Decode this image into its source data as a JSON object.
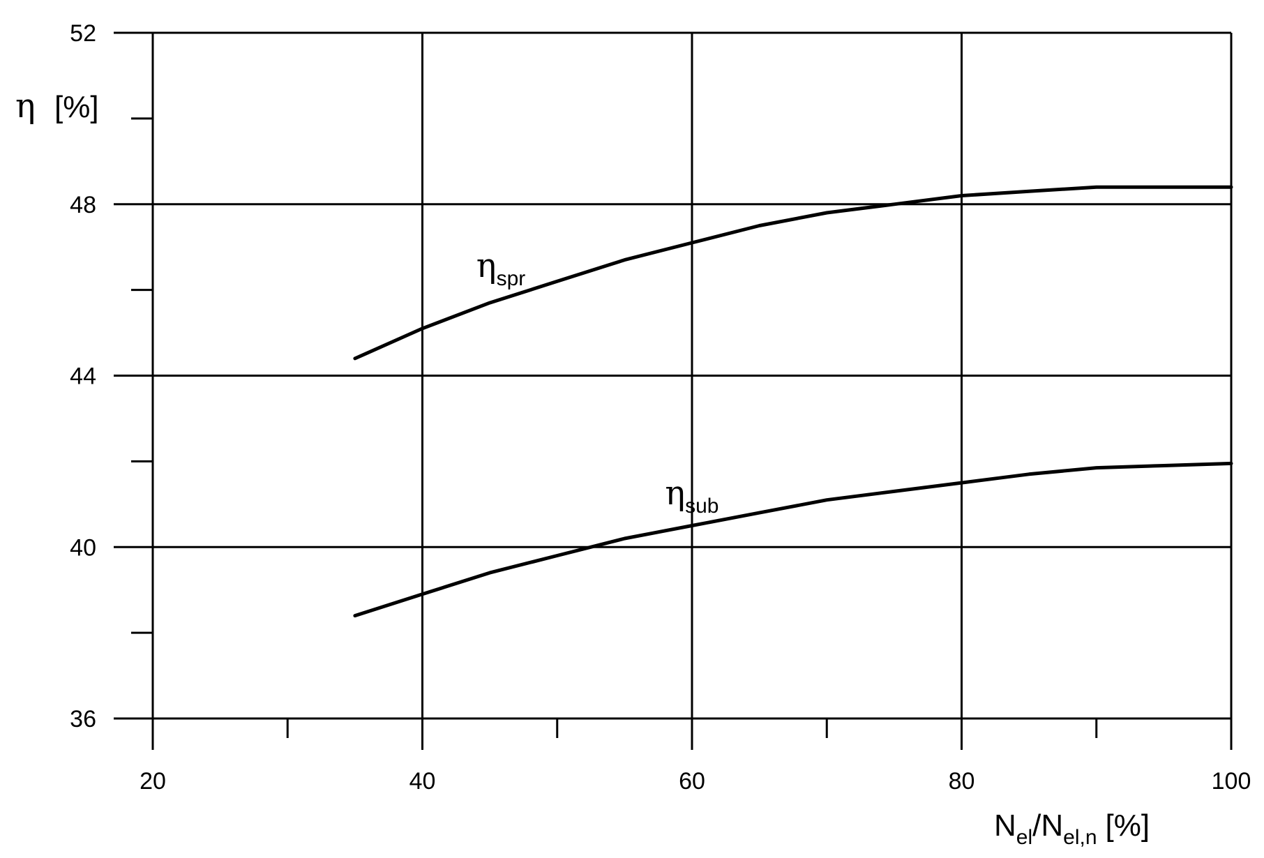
{
  "chart_data": {
    "type": "line",
    "title": "",
    "ylabel": {
      "symbol": "η",
      "unit": "[%]"
    },
    "xlabel": {
      "main": "N",
      "sub1": "el",
      "slash": "/N",
      "sub2": "el,n",
      "unit": "[%]"
    },
    "xlim": [
      20,
      100
    ],
    "ylim": [
      36,
      52
    ],
    "x_ticks_major": [
      20,
      40,
      60,
      80,
      100
    ],
    "x_ticks_major_labels": [
      "20",
      "40",
      "60",
      "80",
      "100"
    ],
    "x_ticks_minor": [
      30,
      50,
      70,
      90
    ],
    "y_ticks_major": [
      36,
      40,
      44,
      48,
      52
    ],
    "y_ticks_major_labels": [
      "36",
      "40",
      "44",
      "48",
      "52"
    ],
    "y_ticks_minor": [
      38,
      42,
      46,
      50
    ],
    "grid": true,
    "series": [
      {
        "name": "ηspr",
        "label_main": "η",
        "label_sub": "spr",
        "label_at": [
          44,
          46.3
        ],
        "x": [
          35,
          40,
          45,
          50,
          55,
          60,
          65,
          70,
          75,
          80,
          85,
          90,
          95,
          100
        ],
        "y": [
          44.4,
          45.1,
          45.7,
          46.2,
          46.7,
          47.1,
          47.5,
          47.8,
          48.0,
          48.2,
          48.3,
          48.4,
          48.4,
          48.4
        ]
      },
      {
        "name": "ηsub",
        "label_main": "η",
        "label_sub": "sub",
        "label_at": [
          58,
          41.0
        ],
        "x": [
          35,
          40,
          45,
          50,
          55,
          60,
          65,
          70,
          75,
          80,
          85,
          90,
          95,
          100
        ],
        "y": [
          38.4,
          38.9,
          39.4,
          39.8,
          40.2,
          40.5,
          40.8,
          41.1,
          41.3,
          41.5,
          41.7,
          41.85,
          41.9,
          41.95
        ]
      }
    ]
  }
}
